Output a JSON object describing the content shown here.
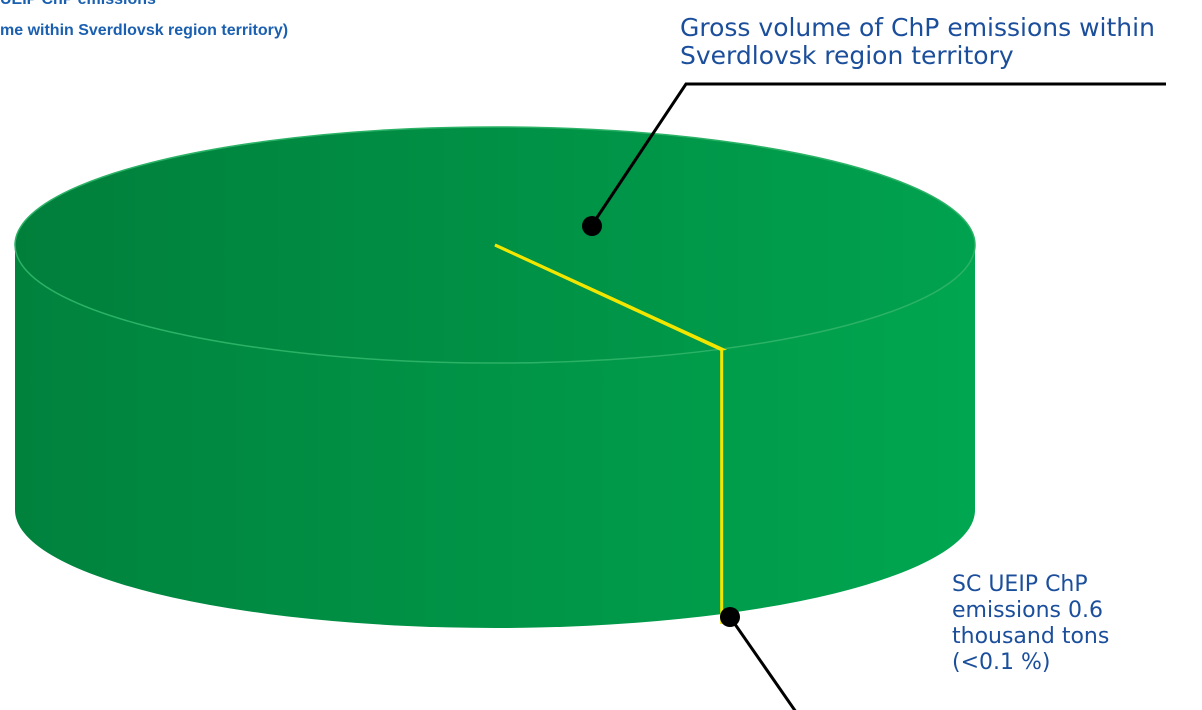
{
  "chart_data": {
    "type": "pie3d",
    "title": "UEIP ChP emissions",
    "subtitle": "me within Sverdlovsk region territory)",
    "categories": [
      "Gross volume of ChP emissions within Sverdlovsk region territory",
      "SC UEIP ChP emissions 0.6 thousand tons (<0.1 %)"
    ],
    "values": [
      99.95,
      0.05
    ],
    "colors": [
      "#00914a",
      "#f2e600"
    ]
  }
}
